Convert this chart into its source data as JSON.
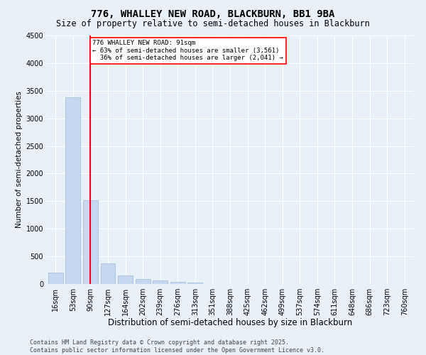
{
  "title1": "776, WHALLEY NEW ROAD, BLACKBURN, BB1 9BA",
  "title2": "Size of property relative to semi-detached houses in Blackburn",
  "xlabel": "Distribution of semi-detached houses by size in Blackburn",
  "ylabel": "Number of semi-detached properties",
  "categories": [
    "16sqm",
    "53sqm",
    "90sqm",
    "127sqm",
    "164sqm",
    "202sqm",
    "239sqm",
    "276sqm",
    "313sqm",
    "351sqm",
    "388sqm",
    "425sqm",
    "462sqm",
    "499sqm",
    "537sqm",
    "574sqm",
    "611sqm",
    "648sqm",
    "686sqm",
    "723sqm",
    "760sqm"
  ],
  "values": [
    205,
    3380,
    1520,
    370,
    155,
    90,
    65,
    45,
    30,
    5,
    0,
    0,
    0,
    0,
    0,
    0,
    0,
    0,
    0,
    0,
    0
  ],
  "bar_color": "#c5d8f0",
  "bar_edge_color": "#a0b8d8",
  "annotation_text": "776 WHALLEY NEW ROAD: 91sqm\n← 63% of semi-detached houses are smaller (3,561)\n  36% of semi-detached houses are larger (2,041) →",
  "annotation_box_color": "#ffffff",
  "annotation_box_edge_color": "red",
  "vline_color": "red",
  "vline_x_index": 2,
  "ylim": [
    0,
    4500
  ],
  "yticks": [
    0,
    500,
    1000,
    1500,
    2000,
    2500,
    3000,
    3500,
    4000,
    4500
  ],
  "background_color": "#e8f0f8",
  "footer": "Contains HM Land Registry data © Crown copyright and database right 2025.\nContains public sector information licensed under the Open Government Licence v3.0.",
  "title1_fontsize": 10,
  "title2_fontsize": 8.5,
  "xlabel_fontsize": 8.5,
  "ylabel_fontsize": 7.5,
  "tick_fontsize": 7,
  "footer_fontsize": 6
}
